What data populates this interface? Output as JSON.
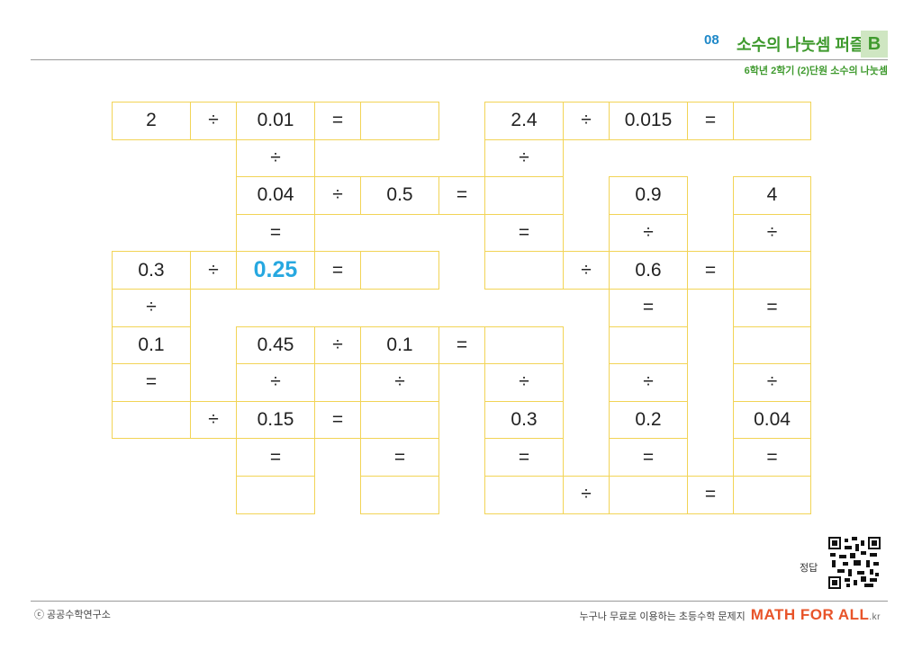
{
  "header": {
    "number": "08",
    "title": "소수의 나눗셈 퍼즐",
    "badge": "B",
    "subtitle": "6학년 2학기 (2)단원 소수의 나눗셈"
  },
  "puzzle": {
    "rows": [
      [
        "2",
        "÷",
        "0.01",
        "=",
        "",
        null,
        "2.4",
        "÷",
        "0.015",
        "=",
        ""
      ],
      [
        null,
        null,
        "÷",
        null,
        null,
        null,
        "÷",
        null,
        null,
        null,
        null
      ],
      [
        null,
        null,
        "0.04",
        "÷",
        "0.5",
        "=",
        "",
        null,
        "0.9",
        null,
        "4"
      ],
      [
        null,
        null,
        "=",
        null,
        null,
        null,
        "=",
        null,
        "÷",
        null,
        "÷"
      ],
      [
        "0.3",
        "÷",
        "0.25",
        "=",
        "",
        null,
        "",
        "÷",
        "0.6",
        "=",
        ""
      ],
      [
        "÷",
        null,
        null,
        null,
        null,
        null,
        null,
        null,
        "=",
        null,
        "="
      ],
      [
        "0.1",
        null,
        "0.45",
        "÷",
        "0.1",
        "=",
        "",
        null,
        "",
        null,
        ""
      ],
      [
        "=",
        null,
        "÷",
        null,
        "÷",
        null,
        "÷",
        null,
        "÷",
        null,
        "÷"
      ],
      [
        "",
        "÷",
        "0.15",
        "=",
        "",
        null,
        "0.3",
        null,
        "0.2",
        null,
        "0.04"
      ],
      [
        null,
        null,
        "=",
        null,
        "=",
        null,
        "=",
        null,
        "=",
        null,
        "="
      ],
      [
        null,
        null,
        "",
        null,
        "",
        null,
        "",
        "÷",
        "",
        "=",
        ""
      ]
    ],
    "boxed_rows": [
      [
        1,
        1,
        1,
        1,
        1,
        0,
        1,
        1,
        1,
        1,
        1
      ],
      [
        0,
        0,
        1,
        0,
        0,
        0,
        1,
        0,
        0,
        0,
        0
      ],
      [
        0,
        0,
        1,
        1,
        1,
        1,
        1,
        0,
        1,
        0,
        1
      ],
      [
        0,
        0,
        1,
        0,
        0,
        0,
        1,
        0,
        1,
        0,
        1
      ],
      [
        1,
        1,
        1,
        1,
        1,
        0,
        1,
        1,
        1,
        1,
        1
      ],
      [
        1,
        0,
        0,
        0,
        0,
        0,
        0,
        0,
        1,
        0,
        1
      ],
      [
        1,
        0,
        1,
        1,
        1,
        1,
        1,
        0,
        1,
        0,
        1
      ],
      [
        1,
        0,
        1,
        0,
        1,
        0,
        1,
        0,
        1,
        0,
        1
      ],
      [
        1,
        1,
        1,
        1,
        1,
        0,
        1,
        0,
        1,
        0,
        1
      ],
      [
        0,
        0,
        1,
        0,
        1,
        0,
        1,
        0,
        1,
        0,
        1
      ],
      [
        0,
        0,
        1,
        0,
        1,
        0,
        1,
        1,
        1,
        1,
        1
      ]
    ],
    "highlight": {
      "row": 4,
      "col": 2,
      "color": "#27a8e0"
    },
    "border_color": "#f2d456"
  },
  "answer": {
    "label": "정답",
    "icon": "qr-code-icon"
  },
  "footer": {
    "copyright": "ⓒ 공공수학연구소",
    "tagline": "누구나 무료로 이용하는 초등수학 문제지",
    "brand": "MATH FOR ALL",
    "brand_tld": ".kr",
    "brand_color": "#e8542a"
  }
}
